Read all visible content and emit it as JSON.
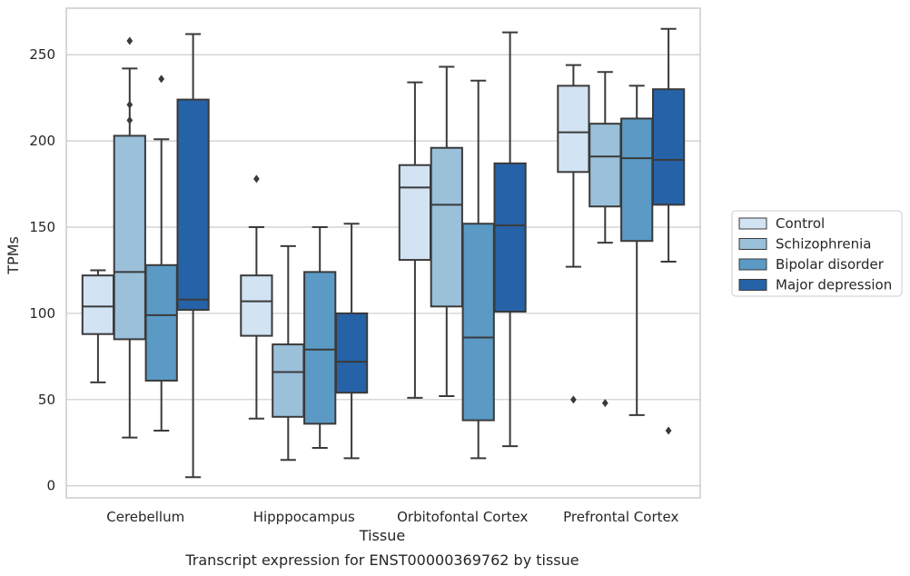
{
  "chart_data": {
    "type": "box",
    "title": "",
    "caption": "Transcript expression for ENST00000369762 by tissue",
    "xlabel": "Tissue",
    "ylabel": "TPMs",
    "ylim": [
      -7,
      277
    ],
    "yticks": [
      0,
      50,
      100,
      150,
      200,
      250
    ],
    "grid": "horizontal",
    "legend_position": "right",
    "categories": [
      "Cerebellum",
      "Hipppocampus",
      "Orbitofontal Cortex",
      "Prefrontal Cortex"
    ],
    "series": [
      {
        "name": "Control",
        "color": "#d2e3f3",
        "boxes": [
          {
            "whisker_low": 60,
            "q1": 88,
            "median": 104,
            "q3": 122,
            "whisker_high": 125,
            "outliers": []
          },
          {
            "whisker_low": 39,
            "q1": 87,
            "median": 107,
            "q3": 122,
            "whisker_high": 150,
            "outliers": [
              178
            ]
          },
          {
            "whisker_low": 51,
            "q1": 131,
            "median": 173,
            "q3": 186,
            "whisker_high": 234,
            "outliers": []
          },
          {
            "whisker_low": 127,
            "q1": 182,
            "median": 205,
            "q3": 232,
            "whisker_high": 244,
            "outliers": [
              50
            ]
          }
        ]
      },
      {
        "name": "Schizophrenia",
        "color": "#9ac0da",
        "boxes": [
          {
            "whisker_low": 28,
            "q1": 85,
            "median": 124,
            "q3": 203,
            "whisker_high": 242,
            "outliers": [
              258,
              221,
              212
            ]
          },
          {
            "whisker_low": 15,
            "q1": 40,
            "median": 66,
            "q3": 82,
            "whisker_high": 139,
            "outliers": []
          },
          {
            "whisker_low": 52,
            "q1": 104,
            "median": 163,
            "q3": 196,
            "whisker_high": 243,
            "outliers": []
          },
          {
            "whisker_low": 141,
            "q1": 162,
            "median": 191,
            "q3": 210,
            "whisker_high": 240,
            "outliers": [
              48
            ]
          }
        ]
      },
      {
        "name": "Bipolar disorder",
        "color": "#5a9ac5",
        "boxes": [
          {
            "whisker_low": 32,
            "q1": 61,
            "median": 99,
            "q3": 128,
            "whisker_high": 201,
            "outliers": [
              236
            ]
          },
          {
            "whisker_low": 22,
            "q1": 36,
            "median": 79,
            "q3": 124,
            "whisker_high": 150,
            "outliers": []
          },
          {
            "whisker_low": 16,
            "q1": 38,
            "median": 86,
            "q3": 152,
            "whisker_high": 235,
            "outliers": []
          },
          {
            "whisker_low": 41,
            "q1": 142,
            "median": 190,
            "q3": 213,
            "whisker_high": 232,
            "outliers": []
          }
        ]
      },
      {
        "name": "Major depression",
        "color": "#2662a8",
        "boxes": [
          {
            "whisker_low": 5,
            "q1": 102,
            "median": 108,
            "q3": 224,
            "whisker_high": 262,
            "outliers": []
          },
          {
            "whisker_low": 16,
            "q1": 54,
            "median": 72,
            "q3": 100,
            "whisker_high": 152,
            "outliers": []
          },
          {
            "whisker_low": 23,
            "q1": 101,
            "median": 151,
            "q3": 187,
            "whisker_high": 263,
            "outliers": []
          },
          {
            "whisker_low": 130,
            "q1": 163,
            "median": 189,
            "q3": 230,
            "whisker_high": 265,
            "outliers": [
              32
            ]
          }
        ]
      }
    ]
  }
}
